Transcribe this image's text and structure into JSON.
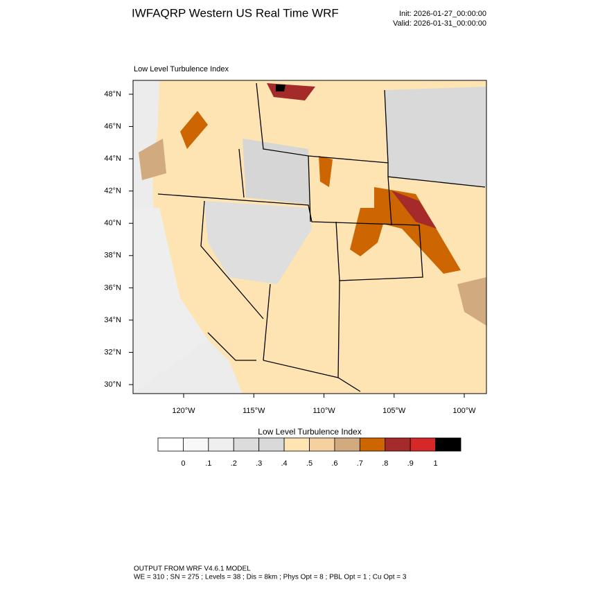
{
  "header": {
    "title": "IWFAQRP Western US Real Time WRF",
    "init": "Init: 2026-01-27_00:00:00",
    "valid": "Valid: 2026-01-31_00:00:00"
  },
  "map": {
    "label": "Low Level Turbulence Index",
    "lat_ticks": [
      {
        "value": 48,
        "label": "48°N"
      },
      {
        "value": 46,
        "label": "46°N"
      },
      {
        "value": 44,
        "label": "44°N"
      },
      {
        "value": 42,
        "label": "42°N"
      },
      {
        "value": 40,
        "label": "40°N"
      },
      {
        "value": 38,
        "label": "38°N"
      },
      {
        "value": 36,
        "label": "36°N"
      },
      {
        "value": 34,
        "label": "34°N"
      },
      {
        "value": 32,
        "label": "32°N"
      },
      {
        "value": 30,
        "label": "30°N"
      }
    ],
    "lon_ticks": [
      {
        "value": -120,
        "label": "120°W"
      },
      {
        "value": -115,
        "label": "115°W"
      },
      {
        "value": -110,
        "label": "110°W"
      },
      {
        "value": -105,
        "label": "105°W"
      },
      {
        "value": -100,
        "label": "100°W"
      }
    ]
  },
  "colorbar": {
    "title": "Low Level Turbulence Index",
    "colors": [
      "#ffffff",
      "#f8f8f8",
      "#efefef",
      "#dcdcdc",
      "#d9d9d9",
      "#fde4b2",
      "#f5d1a0",
      "#d2aa80",
      "#cd6600",
      "#a52a2a",
      "#d62828",
      "#000000"
    ],
    "ticks": [
      0,
      {
        "value": 0.1,
        "label": ".1"
      },
      {
        "value": 0.2,
        "label": ".2"
      },
      {
        "value": 0.3,
        "label": ".3"
      },
      {
        "value": 0.4,
        "label": ".4"
      },
      {
        "value": 0.5,
        "label": ".5"
      },
      {
        "value": 0.6,
        "label": ".6"
      },
      {
        "value": 0.7,
        "label": ".7"
      },
      {
        "value": 0.8,
        "label": ".8"
      },
      {
        "value": 0.9,
        "label": ".9"
      },
      1
    ]
  },
  "footer": {
    "line1": "OUTPUT FROM WRF V4.6.1 MODEL",
    "line2": "WE = 310 ; SN = 275 ; Levels = 38 ; Dis = 8km ; Phys Opt = 8 ; PBL Opt = 1 ; Cu Opt = 3"
  }
}
